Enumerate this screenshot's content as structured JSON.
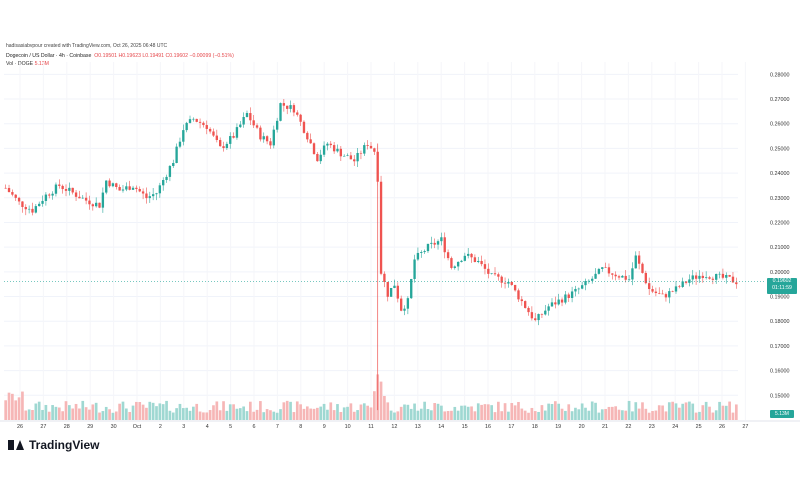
{
  "credit": "hadisasiabvpour created with TradingView.com, Oct 26, 2025 06:48 UTC",
  "header": {
    "symbol": "Dogecoin / US Dollar · 4h · Coinbase",
    "ohlc": "O0.19501 H0.19623 L0.19491 C0.19602 −0.00099 (−0.51%)",
    "vol_label": "Vol · DOGE",
    "vol_value": "5.13M"
  },
  "price_tag": {
    "price": "0.19602",
    "countdown": "01:11:59"
  },
  "vol_tag": "5.13M",
  "logo_text": "TradingView",
  "colors": {
    "up": "#26a69a",
    "down": "#ef5350",
    "up_vol": "#9fd8d2",
    "down_vol": "#f6b6b6"
  },
  "chart_data": {
    "type": "candlestick",
    "symbol": "DOGE/USD",
    "interval": "4h",
    "ylim": [
      0.14,
      0.285
    ],
    "y_ticks": [
      "0.15000",
      "0.16000",
      "0.17000",
      "0.18000",
      "0.19000",
      "0.20000",
      "0.21000",
      "0.22000",
      "0.23000",
      "0.24000",
      "0.25000",
      "0.26000",
      "0.27000",
      "0.28000"
    ],
    "x_ticks": [
      "26",
      "27",
      "28",
      "29",
      "30",
      "Oct",
      "2",
      "3",
      "4",
      "5",
      "6",
      "7",
      "8",
      "9",
      "10",
      "11",
      "12",
      "13",
      "14",
      "15",
      "16",
      "17",
      "18",
      "19",
      "20",
      "21",
      "22",
      "23",
      "24",
      "25",
      "26",
      "27"
    ],
    "last_price": 0.19602,
    "close_path": [
      [
        0,
        0.234
      ],
      [
        4,
        0.228
      ],
      [
        8,
        0.225
      ],
      [
        12,
        0.231
      ],
      [
        16,
        0.235
      ],
      [
        20,
        0.232
      ],
      [
        24,
        0.229
      ],
      [
        28,
        0.227
      ],
      [
        30,
        0.237
      ],
      [
        34,
        0.233
      ],
      [
        38,
        0.235
      ],
      [
        42,
        0.23
      ],
      [
        45,
        0.232
      ],
      [
        50,
        0.245
      ],
      [
        53,
        0.258
      ],
      [
        56,
        0.262
      ],
      [
        60,
        0.259
      ],
      [
        64,
        0.25
      ],
      [
        68,
        0.255
      ],
      [
        72,
        0.264
      ],
      [
        76,
        0.255
      ],
      [
        79,
        0.252
      ],
      [
        82,
        0.268
      ],
      [
        86,
        0.266
      ],
      [
        90,
        0.255
      ],
      [
        93,
        0.246
      ],
      [
        96,
        0.252
      ],
      [
        100,
        0.248
      ],
      [
        104,
        0.245
      ],
      [
        108,
        0.252
      ],
      [
        110,
        0.249
      ],
      [
        111,
        0.238
      ],
      [
        112,
        0.2
      ],
      [
        114,
        0.191
      ],
      [
        116,
        0.195
      ],
      [
        118,
        0.185
      ],
      [
        120,
        0.188
      ],
      [
        122,
        0.205
      ],
      [
        126,
        0.21
      ],
      [
        130,
        0.213
      ],
      [
        133,
        0.202
      ],
      [
        137,
        0.207
      ],
      [
        141,
        0.204
      ],
      [
        145,
        0.198
      ],
      [
        150,
        0.196
      ],
      [
        154,
        0.188
      ],
      [
        158,
        0.18
      ],
      [
        162,
        0.186
      ],
      [
        166,
        0.189
      ],
      [
        170,
        0.192
      ],
      [
        174,
        0.196
      ],
      [
        178,
        0.201
      ],
      [
        182,
        0.199
      ],
      [
        186,
        0.197
      ],
      [
        188,
        0.206
      ],
      [
        192,
        0.193
      ],
      [
        196,
        0.19
      ],
      [
        200,
        0.193
      ],
      [
        204,
        0.197
      ],
      [
        208,
        0.199
      ],
      [
        212,
        0.198
      ],
      [
        216,
        0.197
      ],
      [
        218,
        0.19602
      ]
    ],
    "volume_ylim": [
      0,
      10
    ]
  }
}
